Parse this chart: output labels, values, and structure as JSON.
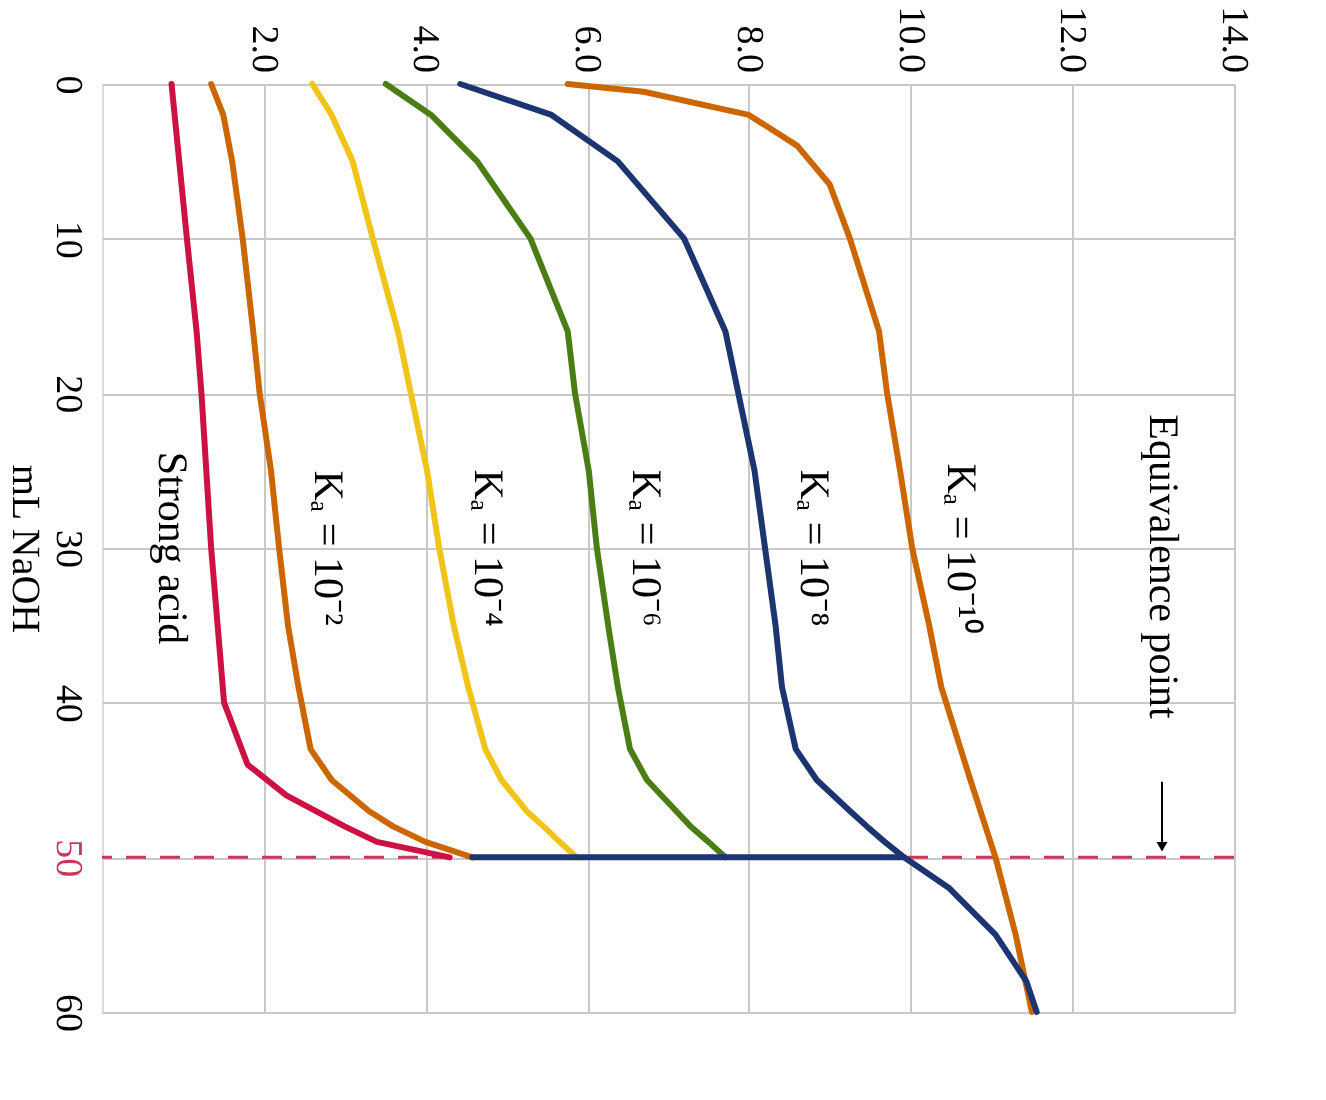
{
  "chart_data": {
    "type": "line",
    "orientation": "horizontal",
    "ylabel": "mL NaOH",
    "xlim": [
      0,
      14
    ],
    "xticks": [
      {
        "value": 2,
        "label": "2.0"
      },
      {
        "value": 4,
        "label": "4.0"
      },
      {
        "value": 6,
        "label": "6.0"
      },
      {
        "value": 8,
        "label": "8.0"
      },
      {
        "value": 10,
        "label": "10.0"
      },
      {
        "value": 12,
        "label": "12.0"
      },
      {
        "value": 14,
        "label": "14.0"
      }
    ],
    "ylim": [
      60,
      0
    ],
    "yticks": [
      0,
      10,
      20,
      30,
      40,
      50,
      60
    ],
    "grid": true,
    "line_style": "solid",
    "ref_lines": [
      {
        "axis": "y",
        "value": 50,
        "color": "#c8385a",
        "line_style": "dashed"
      }
    ],
    "annotations": [
      "Equivalence point"
    ],
    "series": [
      {
        "name": "Strong acid",
        "color": "#cc1144",
        "x": [
          0,
          10,
          16,
          20,
          30,
          40,
          44,
          46,
          48,
          49,
          50
        ],
        "values": [
          0.86,
          1.05,
          1.17,
          1.23,
          1.35,
          1.51,
          1.8,
          2.28,
          3.0,
          3.4,
          4.3
        ]
      },
      {
        "name": "Kₐ = 10⁻²",
        "color": "#cc6600",
        "x": [
          0,
          2,
          5,
          10,
          16,
          20,
          25,
          30,
          35,
          39,
          43,
          45,
          47,
          48,
          49,
          50
        ],
        "values": [
          1.35,
          1.5,
          1.61,
          1.74,
          1.87,
          1.95,
          2.09,
          2.19,
          2.3,
          2.43,
          2.58,
          2.84,
          3.3,
          3.6,
          4.0,
          4.58
        ]
      },
      {
        "name": "Kₐ = 10⁻⁴",
        "color": "#f0c419",
        "x": [
          0,
          2,
          5,
          10,
          16,
          20,
          25,
          30,
          35,
          39,
          43,
          45,
          47,
          48,
          49,
          50
        ],
        "values": [
          2.6,
          2.84,
          3.1,
          3.35,
          3.66,
          3.82,
          4.02,
          4.17,
          4.35,
          4.53,
          4.74,
          4.94,
          5.25,
          5.46,
          5.66,
          5.87
        ]
      },
      {
        "name": "Kₐ = 10⁻⁶",
        "color": "#4a7d14",
        "x": [
          0,
          2,
          5,
          10,
          16,
          20,
          25,
          30,
          35,
          39,
          43,
          45,
          47,
          48,
          49,
          50
        ],
        "values": [
          3.51,
          4.07,
          4.64,
          5.3,
          5.76,
          5.85,
          6.02,
          6.12,
          6.26,
          6.38,
          6.53,
          6.74,
          7.1,
          7.28,
          7.5,
          7.71
        ]
      },
      {
        "name": "Kₐ = 10⁻¹⁰",
        "color": "#cc6600",
        "x": [
          0,
          0.5,
          2,
          4,
          6.5,
          10,
          16,
          20,
          25,
          30,
          35,
          39,
          45,
          50,
          55,
          60
        ],
        "values": [
          5.76,
          6.7,
          8.0,
          8.6,
          9.0,
          9.25,
          9.61,
          9.71,
          9.87,
          10.02,
          10.23,
          10.38,
          10.74,
          11.05,
          11.3,
          11.5
        ]
      },
      {
        "name": "Kₐ = 10⁻⁸",
        "color": "#1c3470",
        "x": [
          0,
          2,
          5,
          10,
          16,
          20,
          25,
          30,
          35,
          39,
          43,
          45,
          47,
          48,
          49,
          50
        ],
        "values": [
          4.43,
          5.56,
          6.38,
          7.2,
          7.71,
          7.87,
          8.07,
          8.2,
          8.33,
          8.41,
          8.58,
          8.84,
          9.25,
          9.46,
          9.68,
          9.92
        ]
      },
      {
        "color": "#1c3470",
        "x": [
          50,
          50,
          52,
          55,
          58,
          60
        ],
        "values": [
          4.58,
          9.92,
          10.48,
          11.05,
          11.43,
          11.56
        ]
      }
    ]
  }
}
